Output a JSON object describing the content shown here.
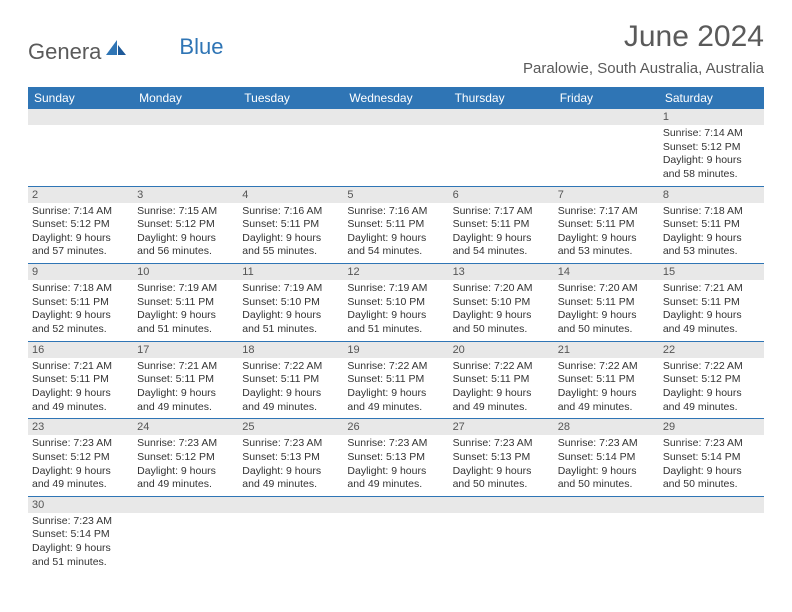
{
  "logo": {
    "main": "Genera",
    "blue": "Blue"
  },
  "title": "June 2024",
  "location": "Paralowie, South Australia, Australia",
  "colors": {
    "header_bg": "#2f75b5",
    "header_fg": "#ffffff",
    "daynum_bg": "#e8e8e8",
    "border": "#2f75b5"
  },
  "weekdays": [
    "Sunday",
    "Monday",
    "Tuesday",
    "Wednesday",
    "Thursday",
    "Friday",
    "Saturday"
  ],
  "first_weekday_index": 6,
  "days": [
    {
      "n": 1,
      "sunrise": "7:14 AM",
      "sunset": "5:12 PM",
      "daylight": "9 hours and 58 minutes."
    },
    {
      "n": 2,
      "sunrise": "7:14 AM",
      "sunset": "5:12 PM",
      "daylight": "9 hours and 57 minutes."
    },
    {
      "n": 3,
      "sunrise": "7:15 AM",
      "sunset": "5:12 PM",
      "daylight": "9 hours and 56 minutes."
    },
    {
      "n": 4,
      "sunrise": "7:16 AM",
      "sunset": "5:11 PM",
      "daylight": "9 hours and 55 minutes."
    },
    {
      "n": 5,
      "sunrise": "7:16 AM",
      "sunset": "5:11 PM",
      "daylight": "9 hours and 54 minutes."
    },
    {
      "n": 6,
      "sunrise": "7:17 AM",
      "sunset": "5:11 PM",
      "daylight": "9 hours and 54 minutes."
    },
    {
      "n": 7,
      "sunrise": "7:17 AM",
      "sunset": "5:11 PM",
      "daylight": "9 hours and 53 minutes."
    },
    {
      "n": 8,
      "sunrise": "7:18 AM",
      "sunset": "5:11 PM",
      "daylight": "9 hours and 53 minutes."
    },
    {
      "n": 9,
      "sunrise": "7:18 AM",
      "sunset": "5:11 PM",
      "daylight": "9 hours and 52 minutes."
    },
    {
      "n": 10,
      "sunrise": "7:19 AM",
      "sunset": "5:11 PM",
      "daylight": "9 hours and 51 minutes."
    },
    {
      "n": 11,
      "sunrise": "7:19 AM",
      "sunset": "5:10 PM",
      "daylight": "9 hours and 51 minutes."
    },
    {
      "n": 12,
      "sunrise": "7:19 AM",
      "sunset": "5:10 PM",
      "daylight": "9 hours and 51 minutes."
    },
    {
      "n": 13,
      "sunrise": "7:20 AM",
      "sunset": "5:10 PM",
      "daylight": "9 hours and 50 minutes."
    },
    {
      "n": 14,
      "sunrise": "7:20 AM",
      "sunset": "5:11 PM",
      "daylight": "9 hours and 50 minutes."
    },
    {
      "n": 15,
      "sunrise": "7:21 AM",
      "sunset": "5:11 PM",
      "daylight": "9 hours and 49 minutes."
    },
    {
      "n": 16,
      "sunrise": "7:21 AM",
      "sunset": "5:11 PM",
      "daylight": "9 hours and 49 minutes."
    },
    {
      "n": 17,
      "sunrise": "7:21 AM",
      "sunset": "5:11 PM",
      "daylight": "9 hours and 49 minutes."
    },
    {
      "n": 18,
      "sunrise": "7:22 AM",
      "sunset": "5:11 PM",
      "daylight": "9 hours and 49 minutes."
    },
    {
      "n": 19,
      "sunrise": "7:22 AM",
      "sunset": "5:11 PM",
      "daylight": "9 hours and 49 minutes."
    },
    {
      "n": 20,
      "sunrise": "7:22 AM",
      "sunset": "5:11 PM",
      "daylight": "9 hours and 49 minutes."
    },
    {
      "n": 21,
      "sunrise": "7:22 AM",
      "sunset": "5:11 PM",
      "daylight": "9 hours and 49 minutes."
    },
    {
      "n": 22,
      "sunrise": "7:22 AM",
      "sunset": "5:12 PM",
      "daylight": "9 hours and 49 minutes."
    },
    {
      "n": 23,
      "sunrise": "7:23 AM",
      "sunset": "5:12 PM",
      "daylight": "9 hours and 49 minutes."
    },
    {
      "n": 24,
      "sunrise": "7:23 AM",
      "sunset": "5:12 PM",
      "daylight": "9 hours and 49 minutes."
    },
    {
      "n": 25,
      "sunrise": "7:23 AM",
      "sunset": "5:13 PM",
      "daylight": "9 hours and 49 minutes."
    },
    {
      "n": 26,
      "sunrise": "7:23 AM",
      "sunset": "5:13 PM",
      "daylight": "9 hours and 49 minutes."
    },
    {
      "n": 27,
      "sunrise": "7:23 AM",
      "sunset": "5:13 PM",
      "daylight": "9 hours and 50 minutes."
    },
    {
      "n": 28,
      "sunrise": "7:23 AM",
      "sunset": "5:14 PM",
      "daylight": "9 hours and 50 minutes."
    },
    {
      "n": 29,
      "sunrise": "7:23 AM",
      "sunset": "5:14 PM",
      "daylight": "9 hours and 50 minutes."
    },
    {
      "n": 30,
      "sunrise": "7:23 AM",
      "sunset": "5:14 PM",
      "daylight": "9 hours and 51 minutes."
    }
  ],
  "labels": {
    "sunrise": "Sunrise:",
    "sunset": "Sunset:",
    "daylight": "Daylight:"
  }
}
